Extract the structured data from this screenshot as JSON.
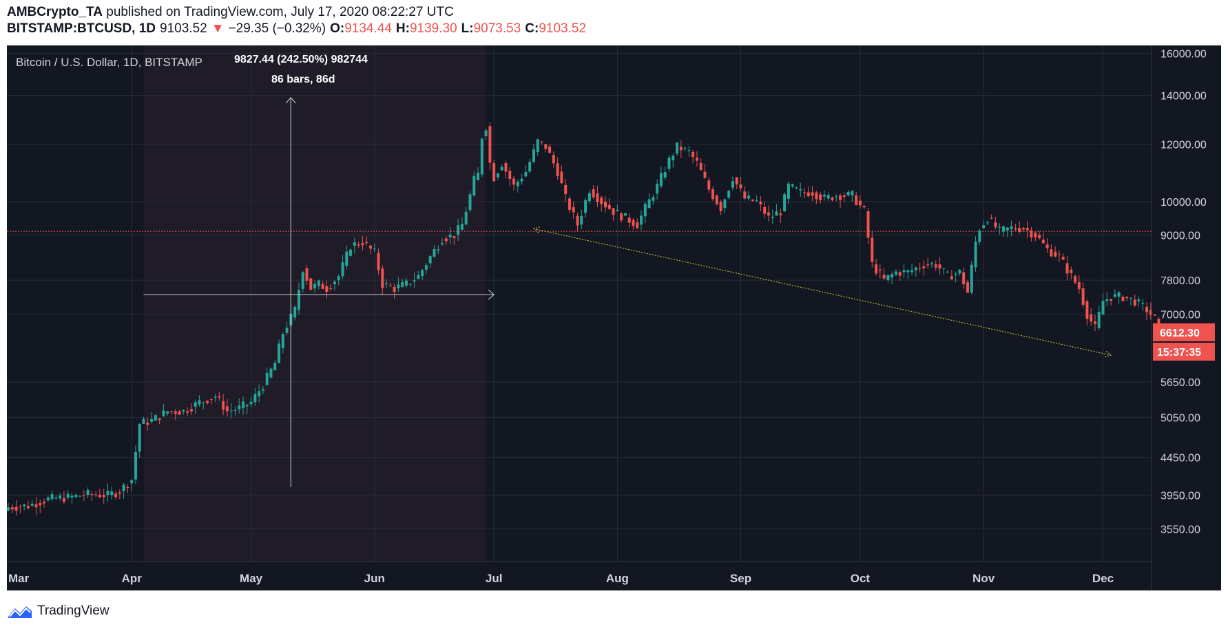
{
  "header": {
    "author": "AMBCrypto_TA",
    "published_text": "published on TradingView.com, July 17, 2020 08:22:27 UTC",
    "symbol": "BITSTAMP:BTCUSD, 1D",
    "last": "9103.52",
    "down_arrow": "▼",
    "change": "−29.35 (−0.32%)",
    "open_label": "O:",
    "open": "9134.44",
    "high_label": "H:",
    "high": "9139.30",
    "low_label": "L:",
    "low": "9073.53",
    "close_label": "C:",
    "close": "9103.52"
  },
  "footer": {
    "brand": "TradingView",
    "logo_icon": "tradingview-logo-icon"
  },
  "colors": {
    "bg": "#131722",
    "grid": "#2a2e39",
    "text": "#d1d4dc",
    "up": "#26a69a",
    "down": "#ef5350",
    "trend": "#d4d435",
    "measure": "#d1d4dc",
    "redline": "#ef5350"
  },
  "chart_data": {
    "type": "candlestick",
    "title": "Bitcoin / U.S. Dollar, 1D, BITSTAMP",
    "y_scale": "log",
    "ylim": [
      3200,
      16400
    ],
    "y_ticks": [
      3550,
      3950,
      4450,
      5050,
      5650,
      7000,
      7800,
      9000,
      10000,
      12000,
      14000,
      16000
    ],
    "y_tick_labels": [
      "3550.00",
      "3950.00",
      "4450.00",
      "5050.00",
      "5650.00",
      "7000.00",
      "7800.00",
      "9000.00",
      "10000.00",
      "12000.00",
      "14000.00",
      "16000.00"
    ],
    "x_start_day_label": "Mar",
    "x_ticks": [
      {
        "label": "Mar",
        "day": 0
      },
      {
        "label": "Apr",
        "day": 31
      },
      {
        "label": "May",
        "day": 61
      },
      {
        "label": "Jun",
        "day": 92
      },
      {
        "label": "Jul",
        "day": 122
      },
      {
        "label": "Aug",
        "day": 153
      },
      {
        "label": "Sep",
        "day": 184
      },
      {
        "label": "Oct",
        "day": 214
      },
      {
        "label": "Nov",
        "day": 245
      },
      {
        "label": "Dec",
        "day": 275
      }
    ],
    "price_marker_line": 9103.52,
    "last_price_label": "6612.30",
    "countdown_label": "15:37:35",
    "annotation_measure": {
      "text_line1": "9827.44 (242.50%) 982744",
      "text_line2": "86 bars, 86d",
      "start_day": 34,
      "end_day": 120,
      "low_price": 4050,
      "high_price": 13900,
      "hline_price": 7450
    },
    "annotation_trendline": {
      "start": {
        "day": 132,
        "price": 9180
      },
      "end": {
        "day": 277,
        "price": 6150
      }
    },
    "close_anchors": [
      [
        0,
        3800
      ],
      [
        5,
        3820
      ],
      [
        10,
        3900
      ],
      [
        15,
        3920
      ],
      [
        20,
        3960
      ],
      [
        25,
        3950
      ],
      [
        28,
        4000
      ],
      [
        30,
        4100
      ],
      [
        31,
        4150
      ],
      [
        33,
        4950
      ],
      [
        36,
        5000
      ],
      [
        40,
        5150
      ],
      [
        44,
        5150
      ],
      [
        48,
        5300
      ],
      [
        52,
        5400
      ],
      [
        55,
        5150
      ],
      [
        58,
        5200
      ],
      [
        61,
        5300
      ],
      [
        64,
        5600
      ],
      [
        67,
        6000
      ],
      [
        69,
        6600
      ],
      [
        72,
        7100
      ],
      [
        74,
        8100
      ],
      [
        76,
        7600
      ],
      [
        78,
        7700
      ],
      [
        80,
        7600
      ],
      [
        83,
        7900
      ],
      [
        86,
        8700
      ],
      [
        89,
        8800
      ],
      [
        92,
        8500
      ],
      [
        94,
        7700
      ],
      [
        97,
        7600
      ],
      [
        100,
        7700
      ],
      [
        103,
        7900
      ],
      [
        106,
        8400
      ],
      [
        109,
        8900
      ],
      [
        112,
        9000
      ],
      [
        114,
        9300
      ],
      [
        116,
        10200
      ],
      [
        117,
        10700
      ],
      [
        118,
        10900
      ],
      [
        119,
        12300
      ],
      [
        120,
        12700
      ],
      [
        121,
        11300
      ],
      [
        122,
        10800
      ],
      [
        124,
        11300
      ],
      [
        127,
        10500
      ],
      [
        130,
        11000
      ],
      [
        132,
        11700
      ],
      [
        133,
        12100
      ],
      [
        135,
        11900
      ],
      [
        138,
        11000
      ],
      [
        140,
        10100
      ],
      [
        143,
        9300
      ],
      [
        146,
        10400
      ],
      [
        149,
        10000
      ],
      [
        152,
        9700
      ],
      [
        155,
        9500
      ],
      [
        158,
        9300
      ],
      [
        160,
        9800
      ],
      [
        163,
        10500
      ],
      [
        166,
        11400
      ],
      [
        168,
        11900
      ],
      [
        171,
        11700
      ],
      [
        173,
        11300
      ],
      [
        176,
        10400
      ],
      [
        179,
        9800
      ],
      [
        182,
        10800
      ],
      [
        185,
        10100
      ],
      [
        188,
        10000
      ],
      [
        191,
        9500
      ],
      [
        194,
        9700
      ],
      [
        196,
        10500
      ],
      [
        199,
        10300
      ],
      [
        202,
        10300
      ],
      [
        205,
        10100
      ],
      [
        208,
        10200
      ],
      [
        212,
        10200
      ],
      [
        215,
        9700
      ],
      [
        217,
        8200
      ],
      [
        220,
        7800
      ],
      [
        223,
        8000
      ],
      [
        226,
        8000
      ],
      [
        230,
        8200
      ],
      [
        233,
        8200
      ],
      [
        236,
        7900
      ],
      [
        239,
        8000
      ],
      [
        241,
        7500
      ],
      [
        243,
        8800
      ],
      [
        244,
        9200
      ],
      [
        246,
        9500
      ],
      [
        249,
        9100
      ],
      [
        252,
        9200
      ],
      [
        255,
        9200
      ],
      [
        258,
        9000
      ],
      [
        261,
        8600
      ],
      [
        264,
        8400
      ],
      [
        267,
        7900
      ],
      [
        269,
        7600
      ],
      [
        271,
        7000
      ],
      [
        273,
        6700
      ],
      [
        275,
        7300
      ],
      [
        277,
        7400
      ],
      [
        280,
        7400
      ],
      [
        283,
        7300
      ],
      [
        286,
        7100
      ],
      [
        288,
        6900
      ],
      [
        289,
        6610
      ]
    ]
  }
}
